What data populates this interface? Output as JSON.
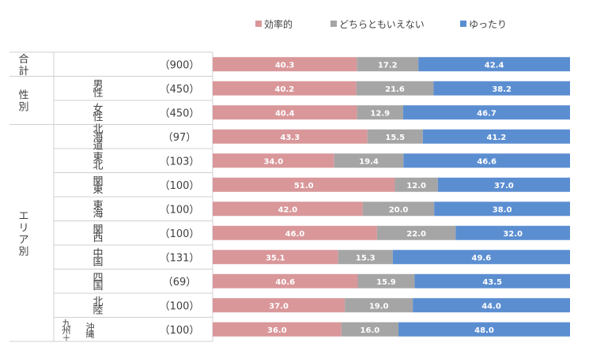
{
  "chart_data": {
    "type": "bar",
    "stacked": true,
    "orientation": "horizontal",
    "percent": true,
    "legend": {
      "placement": "top-right"
    },
    "series": [
      {
        "name": "効率的",
        "color": "#D9979A",
        "values": [
          40.3,
          40.2,
          40.4,
          43.3,
          34.0,
          51.0,
          42.0,
          46.0,
          35.1,
          40.6,
          37.0,
          36.0
        ]
      },
      {
        "name": "どちらともいえない",
        "color": "#A5A5A5",
        "values": [
          17.2,
          21.6,
          12.9,
          15.5,
          19.4,
          12.0,
          20.0,
          22.0,
          15.3,
          15.9,
          19.0,
          16.0
        ]
      },
      {
        "name": "ゆったり",
        "color": "#5B8ED1",
        "values": [
          42.4,
          38.2,
          46.7,
          41.2,
          46.6,
          37.0,
          38.0,
          32.0,
          49.6,
          43.5,
          44.0,
          48.0
        ]
      }
    ],
    "rows": [
      {
        "group": "合計",
        "label": "",
        "n": "（900）"
      },
      {
        "group": "性別",
        "label": "男性",
        "n": "（450）"
      },
      {
        "group": "性別",
        "label": "女性",
        "n": "（450）"
      },
      {
        "group": "エリア別",
        "label": "北海道",
        "n": "（97）"
      },
      {
        "group": "エリア別",
        "label": "東北",
        "n": "（103）"
      },
      {
        "group": "エリア別",
        "label": "関東",
        "n": "（100）"
      },
      {
        "group": "エリア別",
        "label": "東海",
        "n": "（100）"
      },
      {
        "group": "エリア別",
        "label": "関西",
        "n": "（100）"
      },
      {
        "group": "エリア別",
        "label": "中国",
        "n": "（131）"
      },
      {
        "group": "エリア別",
        "label": "四国",
        "n": "（69）"
      },
      {
        "group": "エリア別",
        "label": "北陸",
        "n": "（100）"
      },
      {
        "group": "エリア別",
        "label": "九州＋沖縄",
        "n": "（100）"
      }
    ],
    "groups": [
      {
        "name": "合計",
        "rows": 1
      },
      {
        "name": "性別",
        "rows": 2
      },
      {
        "name": "エリア別",
        "rows": 9
      }
    ],
    "xlim": [
      0,
      100
    ]
  }
}
